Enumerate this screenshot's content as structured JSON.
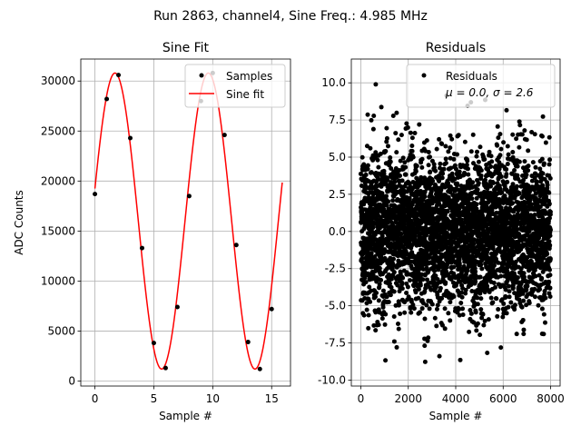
{
  "suptitle": "Run 2863, channel4, Sine Freq.: 4.985 MHz",
  "chart_data": [
    {
      "type": "line",
      "title": "Sine Fit",
      "xlabel": "Sample #",
      "ylabel": "ADC Counts",
      "xlim": [
        -1.2,
        16.6
      ],
      "ylim": [
        -500,
        32200
      ],
      "xticks": [
        0,
        5,
        10,
        15
      ],
      "yticks": [
        0,
        5000,
        10000,
        15000,
        20000,
        25000,
        30000
      ],
      "grid": true,
      "legend_position": "top-right",
      "series": [
        {
          "name": "Samples",
          "kind": "scatter",
          "color": "#000000",
          "x": [
            0,
            1,
            2,
            3,
            4,
            5,
            6,
            7,
            8,
            9,
            10,
            11,
            12,
            13,
            14,
            15
          ],
          "y": [
            18700,
            28200,
            30600,
            24300,
            13300,
            3800,
            1300,
            7400,
            18500,
            28000,
            30800,
            24600,
            13600,
            3900,
            1200,
            7200
          ]
        },
        {
          "name": "Sine fit",
          "kind": "line",
          "color": "#ff0000",
          "fit": {
            "offset": 16000,
            "amplitude": 14800,
            "cycles_per_sample": 0.1262,
            "phase": 0.2217
          },
          "x_range": [
            0,
            15.9
          ]
        }
      ]
    },
    {
      "type": "scatter",
      "title": "Residuals",
      "xlabel": "Sample #",
      "ylabel": "",
      "xlim": [
        -400,
        8400
      ],
      "ylim": [
        -10.4,
        11.6
      ],
      "xticks": [
        0,
        2000,
        4000,
        6000,
        8000
      ],
      "yticks": [
        -10.0,
        -7.5,
        -5.0,
        -2.5,
        0.0,
        2.5,
        5.0,
        7.5,
        10.0
      ],
      "grid": true,
      "legend_position": "top-right",
      "series": [
        {
          "name": "Residuals",
          "stats_label": "μ = 0.0, σ = 2.6",
          "mu": 0.0,
          "sigma": 2.6,
          "n_samples": 8000,
          "color": "#000000"
        }
      ]
    }
  ]
}
